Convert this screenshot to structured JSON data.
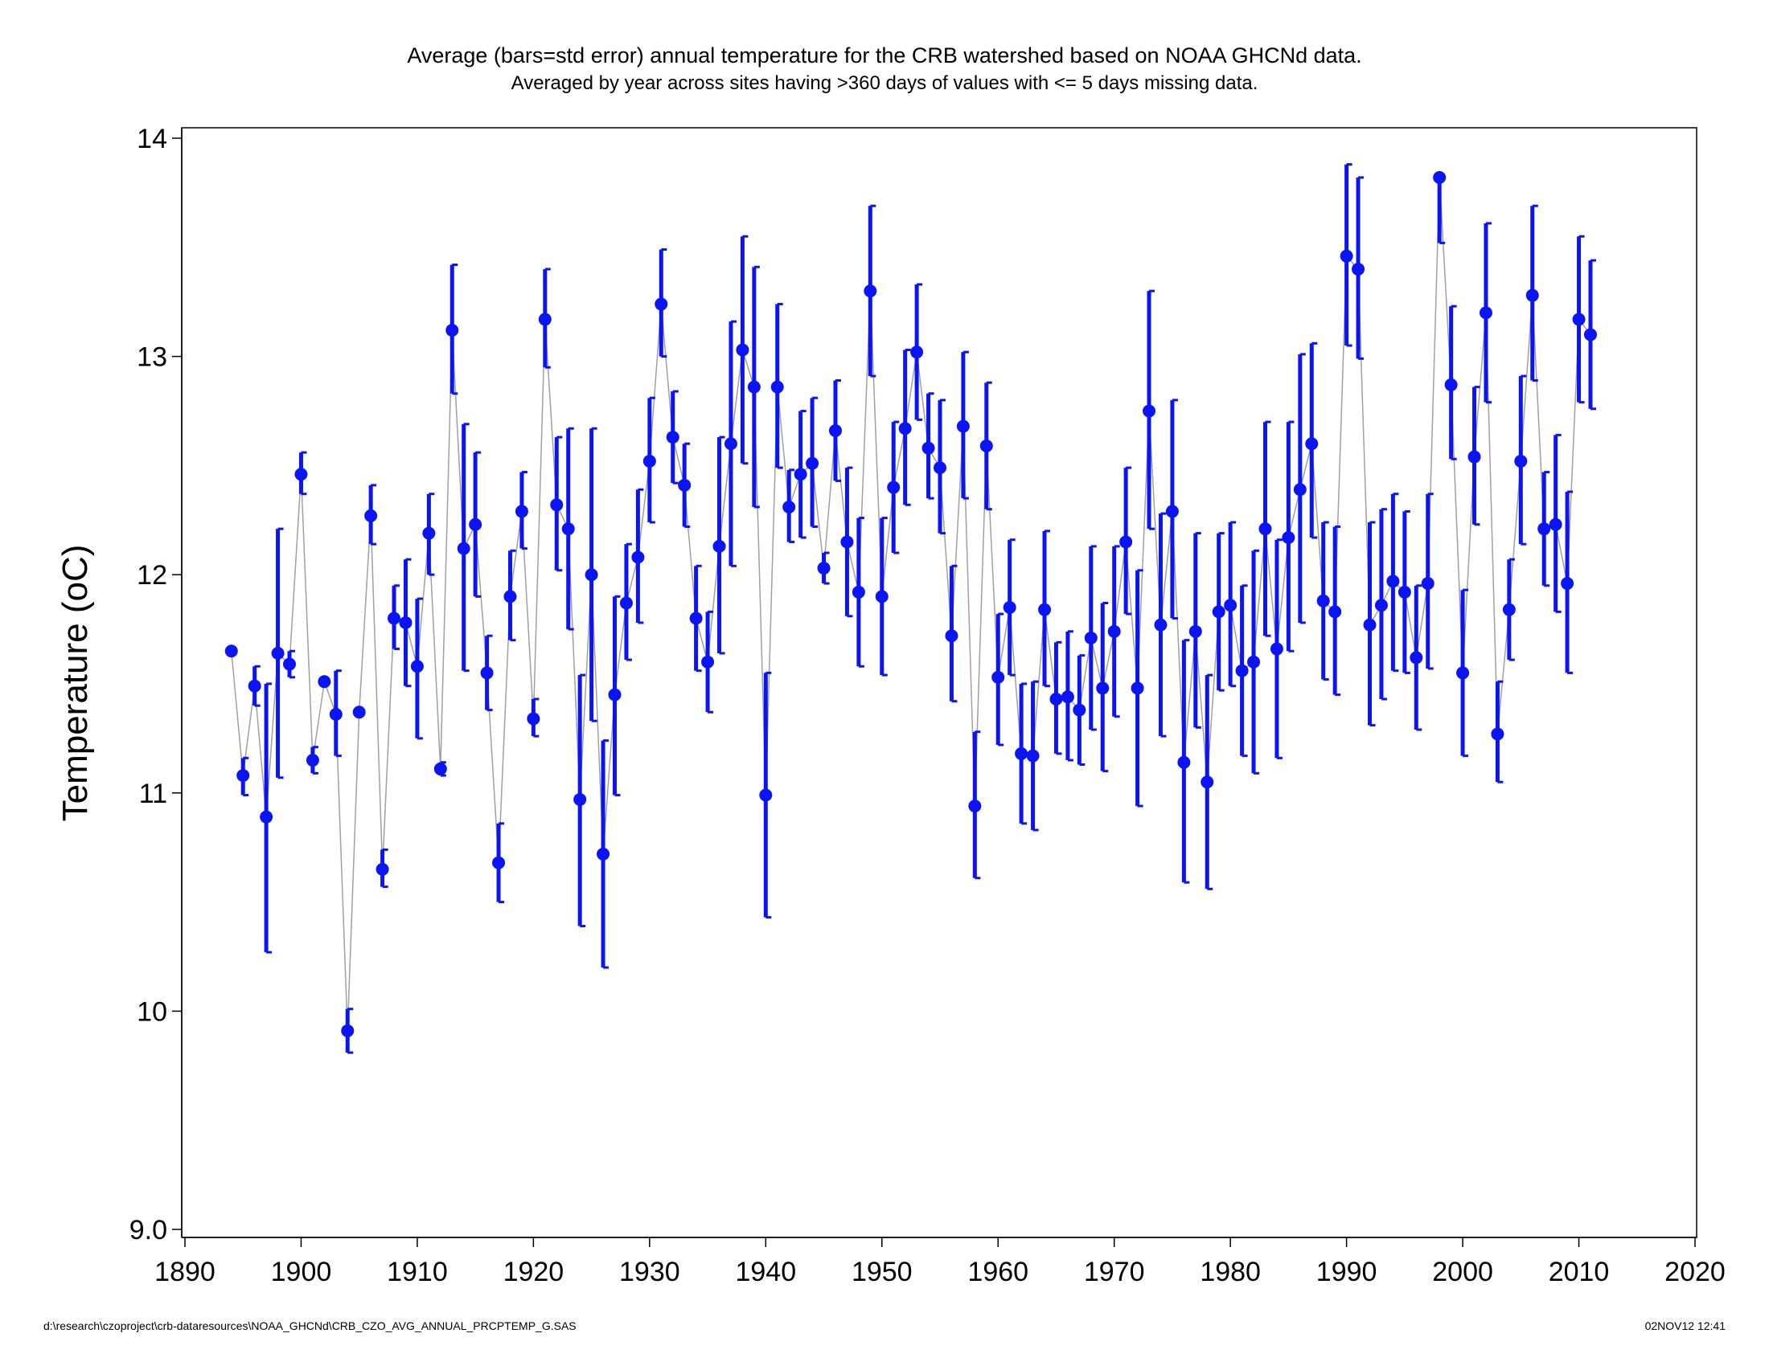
{
  "chart_data": {
    "type": "line",
    "title": "Average (bars=std error) annual temperature for the CRB watershed based on NOAA GHCNd data.",
    "subtitle": "Averaged by year across sites having >360 days of values with <= 5 days missing data.",
    "xlabel": "",
    "ylabel": "Temperature (oC)",
    "xlim": [
      1890,
      2020
    ],
    "ylim": [
      9.0,
      14.0
    ],
    "x_ticks": [
      1890,
      1900,
      1910,
      1920,
      1930,
      1940,
      1950,
      1960,
      1970,
      1980,
      1990,
      2000,
      2010,
      2020
    ],
    "y_ticks": [
      "9.0",
      "10",
      "11",
      "12",
      "13",
      "14"
    ],
    "grid": false,
    "colors": {
      "marker": "#0a14f5",
      "error_bar": "#0a14f5",
      "line": "#a0a0a0"
    },
    "series": [
      {
        "x": [
          1894,
          1895,
          1896,
          1897,
          1898,
          1899,
          1900,
          1901,
          1902,
          1903,
          1904,
          1905,
          1906,
          1907,
          1908,
          1909,
          1910,
          1911,
          1912,
          1913,
          1914,
          1915,
          1916,
          1917,
          1918,
          1919,
          1920,
          1921,
          1922,
          1923,
          1924,
          1925,
          1926,
          1927,
          1928,
          1929,
          1930,
          1931,
          1932,
          1933,
          1934,
          1935,
          1936,
          1937,
          1938,
          1939,
          1940,
          1941,
          1942,
          1943,
          1944,
          1945,
          1946,
          1947,
          1948,
          1949,
          1950,
          1951,
          1952,
          1953,
          1954,
          1955,
          1956,
          1957,
          1958,
          1959,
          1960,
          1961,
          1962,
          1963,
          1964,
          1965,
          1966,
          1967,
          1968,
          1969,
          1970,
          1971,
          1972,
          1973,
          1974,
          1975,
          1976,
          1977,
          1978,
          1979,
          1980,
          1981,
          1982,
          1983,
          1984,
          1985,
          1986,
          1987,
          1988,
          1989,
          1990,
          1991,
          1992,
          1993,
          1994,
          1995,
          1996,
          1997,
          1998,
          1999,
          2000,
          2001,
          2002,
          2003,
          2004,
          2005,
          2006,
          2007,
          2008,
          2009,
          2010,
          2011
        ],
        "y": [
          11.65,
          11.08,
          11.49,
          10.89,
          11.64,
          11.59,
          12.46,
          11.15,
          11.51,
          11.36,
          9.91,
          11.37,
          12.27,
          10.65,
          11.8,
          11.78,
          11.58,
          12.19,
          11.11,
          13.12,
          12.12,
          12.23,
          11.55,
          10.68,
          11.9,
          12.29,
          11.34,
          13.17,
          12.32,
          12.21,
          10.97,
          12.0,
          10.72,
          11.45,
          11.87,
          12.08,
          12.52,
          13.24,
          12.63,
          12.41,
          11.8,
          11.6,
          12.13,
          12.6,
          13.03,
          12.86,
          10.99,
          12.86,
          12.31,
          12.46,
          12.51,
          12.03,
          12.66,
          12.15,
          11.92,
          13.3,
          11.9,
          12.4,
          12.67,
          13.02,
          12.58,
          12.49,
          11.72,
          12.68,
          10.94,
          12.59,
          11.53,
          11.85,
          11.18,
          11.17,
          11.84,
          11.43,
          11.44,
          11.38,
          11.71,
          11.48,
          11.74,
          12.15,
          11.48,
          12.75,
          11.77,
          12.29,
          11.14,
          11.74,
          11.05,
          11.83,
          11.86,
          11.56,
          11.6,
          12.21,
          11.66,
          12.17,
          12.39,
          12.6,
          11.88,
          11.83,
          13.46,
          13.4,
          11.77,
          11.86,
          11.97,
          11.92,
          11.62,
          11.96,
          13.82,
          12.87,
          11.55,
          12.54,
          13.2,
          11.27,
          11.84,
          12.52,
          13.28,
          12.21,
          12.23,
          11.96,
          13.17,
          13.1
        ],
        "lower": [
          11.65,
          10.99,
          11.4,
          10.27,
          11.07,
          11.53,
          12.37,
          11.09,
          11.51,
          11.17,
          9.81,
          11.37,
          12.14,
          10.57,
          11.66,
          11.49,
          11.25,
          12.0,
          11.08,
          12.83,
          11.56,
          11.9,
          11.38,
          10.5,
          11.7,
          12.12,
          11.26,
          12.95,
          12.02,
          11.75,
          10.39,
          11.33,
          10.2,
          10.99,
          11.61,
          11.78,
          12.24,
          13.0,
          12.42,
          12.22,
          11.56,
          11.37,
          11.64,
          12.04,
          12.51,
          12.31,
          10.43,
          12.49,
          12.15,
          12.17,
          12.22,
          11.96,
          12.43,
          11.81,
          11.58,
          12.91,
          11.54,
          12.1,
          12.32,
          12.71,
          12.35,
          12.19,
          11.42,
          12.35,
          10.61,
          12.3,
          11.22,
          11.54,
          10.86,
          10.83,
          11.49,
          11.18,
          11.15,
          11.13,
          11.29,
          11.1,
          11.35,
          11.82,
          10.94,
          12.21,
          11.26,
          11.8,
          10.59,
          11.3,
          10.56,
          11.47,
          11.49,
          11.17,
          11.09,
          11.72,
          11.16,
          11.65,
          11.78,
          12.17,
          11.52,
          11.45,
          13.05,
          12.99,
          11.31,
          11.43,
          11.56,
          11.55,
          11.29,
          11.57,
          13.52,
          12.53,
          11.17,
          12.23,
          12.79,
          11.05,
          11.61,
          12.14,
          12.89,
          11.95,
          11.83,
          11.55,
          12.79,
          12.76
        ],
        "upper": [
          11.65,
          11.16,
          11.58,
          11.5,
          12.21,
          11.65,
          12.56,
          11.21,
          11.51,
          11.56,
          10.01,
          11.37,
          12.41,
          10.74,
          11.95,
          12.07,
          11.89,
          12.37,
          11.14,
          13.42,
          12.69,
          12.56,
          11.72,
          10.86,
          12.11,
          12.47,
          11.43,
          13.4,
          12.63,
          12.67,
          11.54,
          12.67,
          11.24,
          11.9,
          12.14,
          12.39,
          12.81,
          13.49,
          12.84,
          12.6,
          12.04,
          11.83,
          12.63,
          13.16,
          13.55,
          13.41,
          11.55,
          13.24,
          12.48,
          12.75,
          12.81,
          12.1,
          12.89,
          12.49,
          12.26,
          13.69,
          12.26,
          12.7,
          13.03,
          13.33,
          12.83,
          12.8,
          12.04,
          13.02,
          11.28,
          12.88,
          11.82,
          12.16,
          11.5,
          11.51,
          12.2,
          11.69,
          11.74,
          11.63,
          12.13,
          11.87,
          12.13,
          12.49,
          12.02,
          13.3,
          12.28,
          12.8,
          11.7,
          12.19,
          11.54,
          12.19,
          12.24,
          11.95,
          12.11,
          12.7,
          12.16,
          12.7,
          13.01,
          13.06,
          12.24,
          12.22,
          13.88,
          13.82,
          12.24,
          12.3,
          12.37,
          12.29,
          11.95,
          12.37,
          13.82,
          13.23,
          11.93,
          12.86,
          13.61,
          11.51,
          12.07,
          12.91,
          13.69,
          12.47,
          12.64,
          12.38,
          13.55,
          13.44
        ]
      }
    ]
  },
  "footer": {
    "source_path": "d:\\research\\czoproject\\crb-dataresources\\NOAA_GHCNd\\CRB_CZO_AVG_ANNUAL_PRCPTEMP_G.SAS",
    "timestamp": "02NOV12 12:41"
  }
}
